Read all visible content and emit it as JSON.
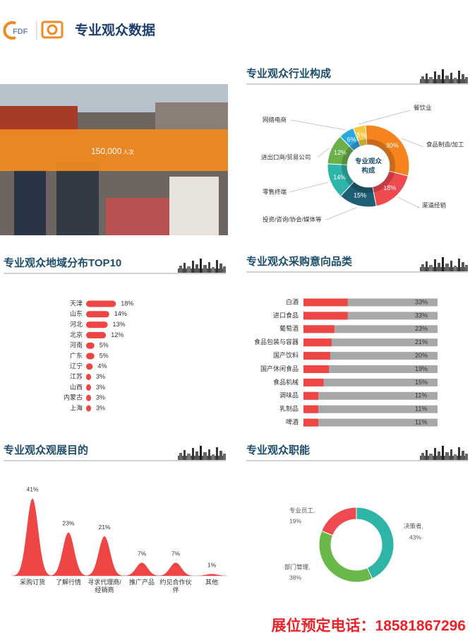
{
  "header": {
    "logo_text": "FDF",
    "title": "专业观众数据"
  },
  "photo": {
    "count": "150,000",
    "unit": "人次"
  },
  "chart_data": [
    {
      "type": "donut",
      "title": "专业观众行业构成",
      "center_label": [
        "专业观众",
        "构成"
      ],
      "categories": [
        "餐饮业",
        "食品制造/加工",
        "渠道经销",
        "投资/咨询/协会/媒体等",
        "零售终端",
        "进出口商/贸易公司",
        "网络电商"
      ],
      "values": [
        5,
        30,
        18,
        15,
        14,
        12,
        6
      ],
      "value_labels": [
        "5%",
        "30%",
        "18%",
        "15%",
        "14%",
        "12%",
        "6%"
      ],
      "colors": [
        "#f6c844",
        "#f5841f",
        "#ef4a4f",
        "#1f5f76",
        "#2db5a9",
        "#6bb04b",
        "#2aa8e0"
      ]
    },
    {
      "type": "bar",
      "title": "专业观众地域分布TOP10",
      "categories": [
        "天津",
        "山东",
        "河北",
        "北京",
        "河南",
        "广东",
        "辽宁",
        "江苏",
        "山西",
        "内蒙古",
        "上海"
      ],
      "values": [
        18,
        14,
        13,
        12,
        5,
        5,
        4,
        3,
        3,
        3,
        3
      ],
      "value_labels": [
        "18%",
        "14%",
        "13%",
        "12%",
        "5%",
        "5%",
        "4%",
        "3%",
        "3%",
        "3%",
        "3%"
      ],
      "color": "#ee4545"
    },
    {
      "type": "bar",
      "title": "专业观众采购意向品类",
      "categories": [
        "白酒",
        "进口食品",
        "葡萄酒",
        "食品包装与容器",
        "国产饮料",
        "国产休闲食品",
        "食品机械",
        "调味品",
        "乳制品",
        "啤酒"
      ],
      "values": [
        33,
        33,
        23,
        21,
        20,
        19,
        15,
        11,
        11,
        11
      ],
      "value_labels": [
        "33%",
        "33%",
        "23%",
        "21%",
        "20%",
        "19%",
        "15%",
        "11%",
        "11%",
        "11%"
      ],
      "xlim": [
        0,
        100
      ],
      "color": "#ee4545",
      "track_color": "#a8a8a8"
    },
    {
      "type": "peak",
      "title": "专业观众观展目的",
      "categories": [
        "采购订货",
        "了解行情",
        "寻求代理商/\n经销商",
        "推广产品",
        "约见合作伙\n伴",
        "其他"
      ],
      "values": [
        41,
        23,
        21,
        7,
        7,
        1
      ],
      "value_labels": [
        "41%",
        "23%",
        "21%",
        "7%",
        "7%",
        "1%"
      ],
      "color": "#ee4545"
    },
    {
      "type": "donut",
      "title": "专业观众职能",
      "categories": [
        "决策者,",
        "部门管理,",
        "专业员工,"
      ],
      "values": [
        43,
        38,
        19
      ],
      "value_labels": [
        "43%",
        "38%",
        "19%"
      ],
      "colors": [
        "#2fb5a7",
        "#6bb84a",
        "#ef4a4f"
      ]
    }
  ],
  "footer": "展位预定电话：18581867296"
}
